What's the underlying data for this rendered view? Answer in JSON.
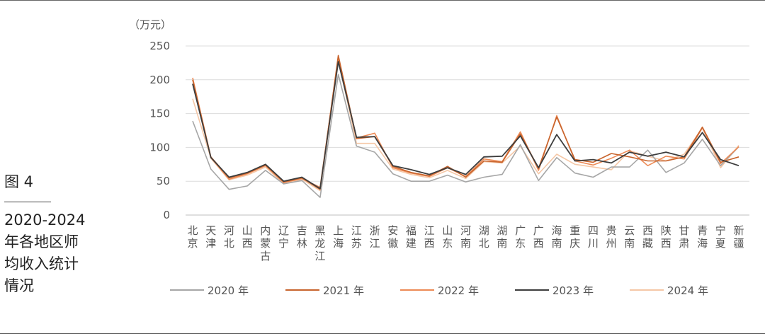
{
  "figure": {
    "label": "图 4",
    "caption_lines": [
      "2020-2024",
      "年各地区师",
      "均收入统计",
      "情况"
    ]
  },
  "chart_data": {
    "type": "line",
    "unit_label": "（万元）",
    "ylim": [
      0,
      250
    ],
    "yticks": [
      0,
      50,
      100,
      150,
      200,
      250
    ],
    "grid": true,
    "legend_position": "bottom",
    "categories": [
      "北京",
      "天津",
      "河北",
      "山西",
      "内蒙古",
      "辽宁",
      "吉林",
      "黑龙江",
      "上海",
      "江苏",
      "浙江",
      "安徽",
      "福建",
      "江西",
      "山东",
      "河南",
      "湖北",
      "湖南",
      "广东",
      "广西",
      "海南",
      "重庆",
      "四川",
      "贵州",
      "云南",
      "西藏",
      "陕西",
      "甘肃",
      "青海",
      "宁夏",
      "新疆"
    ],
    "series": [
      {
        "name": "2020 年",
        "color": "#a6a6a6",
        "values": [
          139,
          68,
          38,
          43,
          66,
          46,
          51,
          26,
          208,
          102,
          93,
          61,
          50,
          50,
          59,
          49,
          56,
          60,
          104,
          51,
          85,
          62,
          56,
          71,
          71,
          96,
          63,
          77,
          112,
          73,
          101
        ]
      },
      {
        "name": "2021 年",
        "color": "#c8642d",
        "values": [
          200,
          86,
          55,
          62,
          74,
          49,
          55,
          38,
          236,
          113,
          116,
          72,
          63,
          58,
          72,
          56,
          80,
          78,
          120,
          69,
          145,
          82,
          78,
          91,
          86,
          80,
          80,
          86,
          130,
          78,
          86
        ]
      },
      {
        "name": "2022 年",
        "color": "#ed8a55",
        "values": [
          203,
          85,
          53,
          61,
          73,
          48,
          54,
          41,
          233,
          114,
          121,
          70,
          62,
          57,
          70,
          57,
          83,
          79,
          123,
          66,
          147,
          80,
          74,
          84,
          96,
          73,
          87,
          83,
          129,
          76,
          101
        ]
      },
      {
        "name": "2023 年",
        "color": "#3d3d3d",
        "values": [
          194,
          85,
          56,
          63,
          75,
          50,
          56,
          39,
          227,
          115,
          116,
          73,
          67,
          60,
          70,
          60,
          86,
          87,
          117,
          70,
          119,
          80,
          82,
          77,
          93,
          87,
          93,
          86,
          122,
          82,
          73
        ]
      },
      {
        "name": "2024 年",
        "color": "#f5c7a6",
        "values": [
          172,
          84,
          52,
          59,
          71,
          46,
          53,
          36,
          230,
          106,
          106,
          68,
          60,
          55,
          66,
          54,
          79,
          77,
          102,
          61,
          90,
          75,
          71,
          67,
          95,
          87,
          80,
          90,
          129,
          70,
          103
        ]
      }
    ]
  }
}
